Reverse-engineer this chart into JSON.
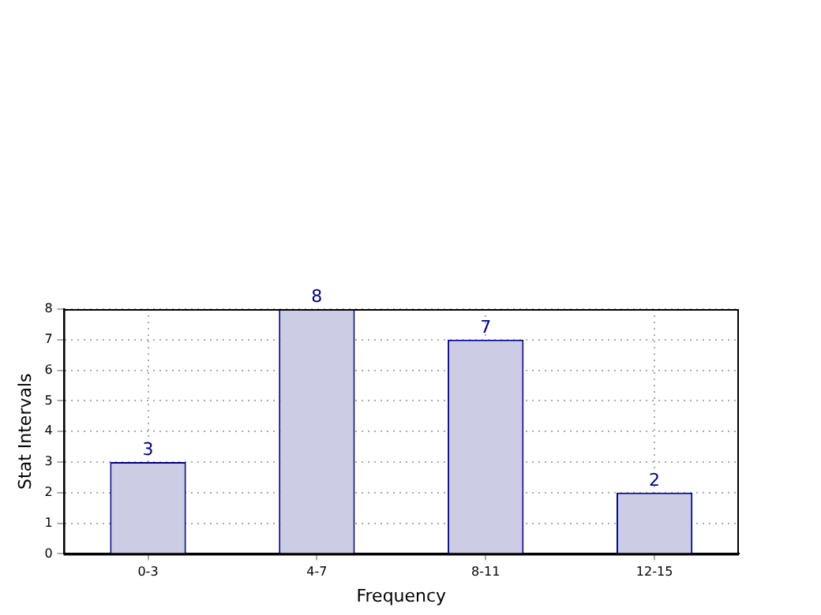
{
  "chart_data": {
    "type": "bar",
    "xlabel": "Frequency",
    "ylabel": "Stat Intervals",
    "categories": [
      "0-3",
      "4-7",
      "8-11",
      "12-15"
    ],
    "values": [
      3,
      8,
      7,
      2
    ],
    "color": "#cccce5",
    "ylim": [
      0,
      8
    ],
    "yticks": [
      0,
      1,
      2,
      3,
      4,
      5,
      6,
      7,
      8
    ],
    "grid": true,
    "data_labels": true
  }
}
